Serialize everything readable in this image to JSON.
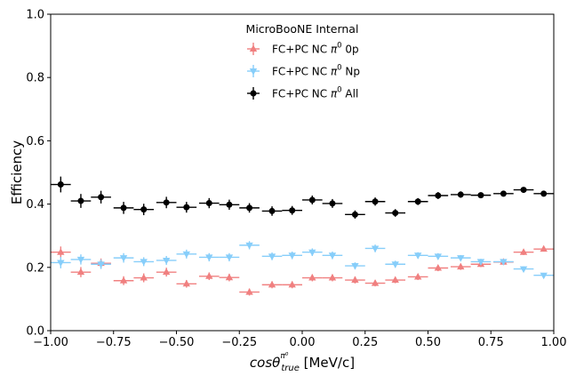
{
  "chart_data": {
    "type": "scatter",
    "legend_title": "MicroBooNE Internal",
    "xlabel": "cosθ",
    "xlabel_sup": "π⁰",
    "xlabel_sub": "true",
    "xlabel_unit": " [MeV/c]",
    "ylabel": "Efficiency",
    "xlim": [
      -1.0,
      1.0
    ],
    "ylim": [
      0.0,
      1.0
    ],
    "x_ticks": [
      "−1.00",
      "−0.75",
      "−0.50",
      "−0.25",
      "0.00",
      "0.25",
      "0.50",
      "0.75",
      "1.00"
    ],
    "x_tick_values": [
      -1.0,
      -0.75,
      -0.5,
      -0.25,
      0.0,
      0.25,
      0.5,
      0.75,
      1.0
    ],
    "y_ticks": [
      "0.0",
      "0.2",
      "0.4",
      "0.6",
      "0.8",
      "1.0"
    ],
    "y_tick_values": [
      0.0,
      0.2,
      0.4,
      0.6,
      0.8,
      1.0
    ],
    "grid": false,
    "legend_position": "top-center",
    "x_bin_half_width": 0.04,
    "x": [
      -0.96,
      -0.88,
      -0.8,
      -0.71,
      -0.63,
      -0.54,
      -0.46,
      -0.37,
      -0.29,
      -0.21,
      -0.12,
      -0.04,
      0.04,
      0.12,
      0.21,
      0.29,
      0.37,
      0.46,
      0.54,
      0.63,
      0.71,
      0.8,
      0.88,
      0.96
    ],
    "series": [
      {
        "name_prefix": "FC+PC NC ",
        "name_sym": "π",
        "name_sup": "0",
        "name_suffix": " 0p",
        "color": "#F08080",
        "marker": "triangle-up",
        "values": [
          0.248,
          0.185,
          0.213,
          0.158,
          0.167,
          0.185,
          0.148,
          0.172,
          0.168,
          0.122,
          0.145,
          0.145,
          0.167,
          0.167,
          0.16,
          0.15,
          0.16,
          0.17,
          0.198,
          0.202,
          0.21,
          0.217,
          0.248,
          0.258
        ],
        "errors": [
          0.018,
          0.016,
          0.015,
          0.014,
          0.014,
          0.014,
          0.012,
          0.012,
          0.012,
          0.011,
          0.011,
          0.011,
          0.011,
          0.011,
          0.011,
          0.01,
          0.01,
          0.01,
          0.01,
          0.01,
          0.009,
          0.009,
          0.009,
          0.008
        ]
      },
      {
        "name_prefix": "FC+PC NC ",
        "name_sym": "π",
        "name_sup": "0",
        "name_suffix": " Np",
        "color": "#87CEFA",
        "marker": "triangle-down",
        "values": [
          0.215,
          0.225,
          0.21,
          0.23,
          0.218,
          0.222,
          0.242,
          0.232,
          0.232,
          0.27,
          0.235,
          0.238,
          0.248,
          0.238,
          0.205,
          0.26,
          0.21,
          0.238,
          0.235,
          0.23,
          0.218,
          0.218,
          0.195,
          0.175
        ],
        "errors": [
          0.018,
          0.016,
          0.015,
          0.015,
          0.014,
          0.014,
          0.014,
          0.013,
          0.013,
          0.013,
          0.012,
          0.012,
          0.012,
          0.012,
          0.011,
          0.012,
          0.011,
          0.01,
          0.01,
          0.009,
          0.009,
          0.008,
          0.008,
          0.007
        ]
      },
      {
        "name_prefix": "FC+PC NC ",
        "name_sym": "π",
        "name_sup": "0",
        "name_suffix": " All",
        "color": "#000000",
        "marker": "circle",
        "values": [
          0.462,
          0.41,
          0.422,
          0.388,
          0.383,
          0.405,
          0.39,
          0.403,
          0.398,
          0.388,
          0.378,
          0.38,
          0.413,
          0.402,
          0.367,
          0.408,
          0.372,
          0.408,
          0.427,
          0.43,
          0.428,
          0.433,
          0.445,
          0.433
        ],
        "errors": [
          0.025,
          0.022,
          0.02,
          0.019,
          0.018,
          0.018,
          0.017,
          0.016,
          0.016,
          0.015,
          0.015,
          0.014,
          0.014,
          0.014,
          0.013,
          0.013,
          0.012,
          0.011,
          0.011,
          0.01,
          0.009,
          0.008,
          0.008,
          0.007
        ]
      }
    ]
  }
}
